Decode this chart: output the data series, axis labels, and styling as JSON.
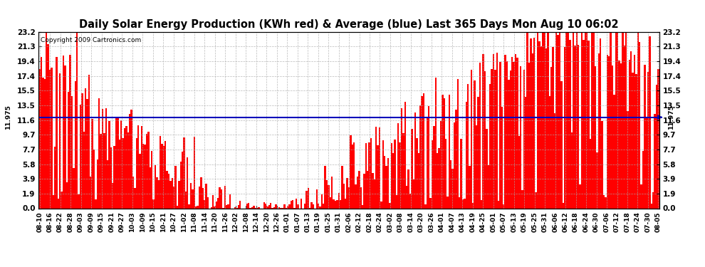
{
  "title": "Daily Solar Energy Production (KWh red) & Average (blue) Last 365 Days Mon Aug 10 06:02",
  "copyright": "Copyright 2009 Cartronics.com",
  "average_value": 11.975,
  "yticks": [
    0.0,
    1.9,
    3.9,
    5.8,
    7.7,
    9.7,
    11.6,
    13.5,
    15.5,
    17.4,
    19.4,
    21.3,
    23.2
  ],
  "ylim": [
    0.0,
    23.2
  ],
  "bar_color": "#FF0000",
  "avg_line_color": "#0000BB",
  "background_color": "#FFFFFF",
  "grid_color": "#AAAAAA",
  "title_fontsize": 10.5,
  "avg_label": "11.975",
  "x_labels": [
    "08-10",
    "08-16",
    "08-22",
    "08-28",
    "09-03",
    "09-09",
    "09-15",
    "09-21",
    "09-27",
    "10-03",
    "10-09",
    "10-15",
    "10-21",
    "10-27",
    "11-02",
    "11-08",
    "11-14",
    "11-20",
    "11-26",
    "12-02",
    "12-08",
    "12-14",
    "12-20",
    "12-26",
    "01-01",
    "01-07",
    "01-13",
    "01-19",
    "01-25",
    "01-31",
    "02-06",
    "02-12",
    "02-18",
    "02-24",
    "03-02",
    "03-08",
    "03-14",
    "03-20",
    "03-26",
    "04-01",
    "04-07",
    "04-13",
    "04-19",
    "04-25",
    "05-01",
    "05-07",
    "05-13",
    "05-19",
    "05-25",
    "05-31",
    "06-06",
    "06-12",
    "06-18",
    "06-24",
    "06-30",
    "07-06",
    "07-12",
    "07-18",
    "07-24",
    "07-30",
    "08-05"
  ],
  "seed": 12345
}
